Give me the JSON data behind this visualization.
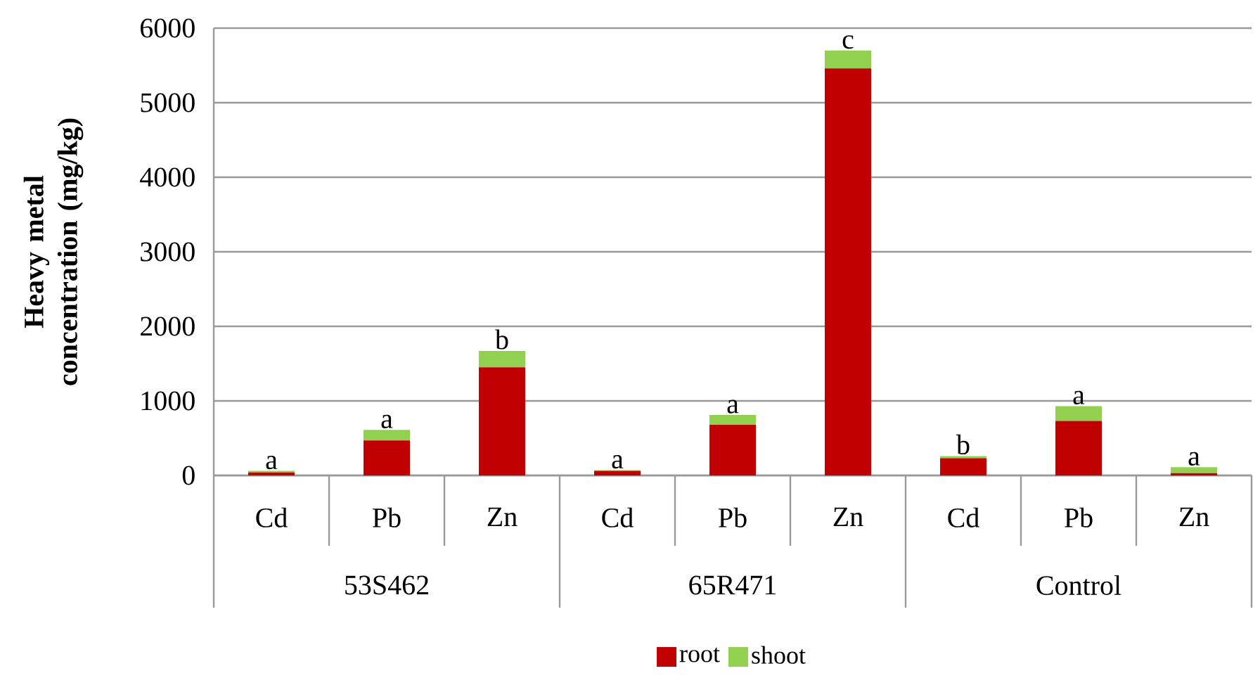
{
  "chart_data": {
    "type": "bar",
    "stacked": true,
    "ylabel": "Heavy metal concentration (mg/kg)",
    "categories": [
      "Cd",
      "Pb",
      "Zn",
      "Cd",
      "Pb",
      "Zn",
      "Cd",
      "Pb",
      "Zn"
    ],
    "series": [
      {
        "name": "root",
        "color": "#c00000",
        "values": [
          40,
          470,
          1450,
          60,
          680,
          5460,
          230,
          730,
          30
        ]
      },
      {
        "name": "shoot",
        "color": "#92d050",
        "values": [
          20,
          140,
          220,
          10,
          130,
          240,
          30,
          200,
          80
        ]
      }
    ],
    "ylim": [
      0,
      6000
    ],
    "yticks": [
      0,
      1000,
      2000,
      3000,
      4000,
      5000,
      6000
    ],
    "grid": "y",
    "legend": "bottom",
    "annotations": [
      "a",
      "a",
      "b",
      "a",
      "a",
      "c",
      "b",
      "a",
      "a",
      "53S462",
      "65R471",
      "Control"
    ]
  }
}
